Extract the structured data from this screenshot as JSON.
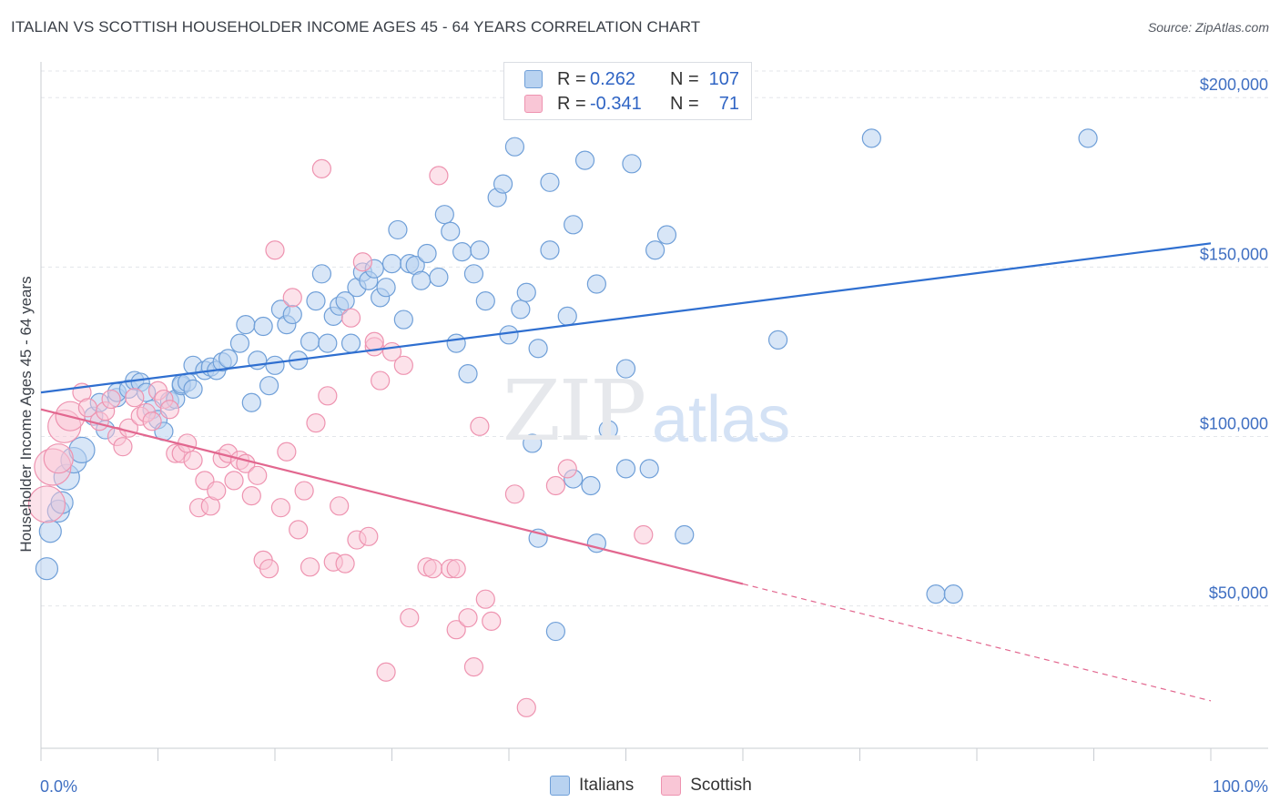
{
  "title": "ITALIAN VS SCOTTISH HOUSEHOLDER INCOME AGES 45 - 64 YEARS CORRELATION CHART",
  "source": "Source: ZipAtlas.com",
  "watermark": {
    "zip": "ZIP",
    "atlas": "atlas"
  },
  "legend": {
    "rows": [
      {
        "r_label": "R =",
        "r_value": "0.262",
        "n_label": "N =",
        "n_value": "107"
      },
      {
        "r_label": "R =",
        "r_value": "-0.341",
        "n_label": "N =",
        "n_value": "71"
      }
    ]
  },
  "bottom_legend": {
    "italians": "Italians",
    "scottish": "Scottish"
  },
  "colors": {
    "italians_fill": "#b8d2f0",
    "italians_stroke": "#6f9fd8",
    "italians_line": "#2f6fd0",
    "scottish_fill": "#f9c6d6",
    "scottish_stroke": "#ee93b0",
    "scottish_line": "#e2678f",
    "grid": "#e3e6ea",
    "axis_label": "#3f6fc2"
  },
  "chart_data": {
    "type": "scatter",
    "xlabel": "",
    "ylabel": "Householder Income Ages 45 - 64 years",
    "x_ticks": [
      "0.0%",
      "100.0%"
    ],
    "y_ticks": [
      "$200,000",
      "$150,000",
      "$100,000",
      "$50,000"
    ],
    "y_tick_values": [
      200000,
      150000,
      100000,
      50000
    ],
    "xlim": [
      0,
      100
    ],
    "ylim": [
      8000,
      210000
    ],
    "grid": "dashed horizontal",
    "series": [
      {
        "name": "Italians",
        "R": 0.262,
        "N": 107,
        "trend": {
          "x": [
            0,
            100
          ],
          "y": [
            113000,
            157000
          ]
        },
        "points": [
          [
            0.5,
            61000,
            12
          ],
          [
            0.8,
            72000,
            12
          ],
          [
            1.5,
            78000,
            12
          ],
          [
            1.8,
            80500,
            12
          ],
          [
            2.2,
            88000,
            14
          ],
          [
            2.8,
            93000,
            14
          ],
          [
            3.5,
            96000,
            14
          ],
          [
            4.5,
            106000,
            10
          ],
          [
            5,
            110000,
            10
          ],
          [
            5.5,
            102000,
            10
          ],
          [
            6.5,
            111500,
            10
          ],
          [
            6.5,
            113000,
            10
          ],
          [
            7.5,
            114000,
            10
          ],
          [
            8,
            116500,
            10
          ],
          [
            8.5,
            116000,
            10
          ],
          [
            9,
            113000,
            10
          ],
          [
            9.5,
            108000,
            10
          ],
          [
            10,
            105000,
            10
          ],
          [
            10.5,
            101500,
            10
          ],
          [
            11,
            110500,
            10
          ],
          [
            11.5,
            111000,
            10
          ],
          [
            12,
            115000,
            10
          ],
          [
            12,
            115500,
            10
          ],
          [
            12.5,
            116000,
            10
          ],
          [
            13,
            121000,
            10
          ],
          [
            13,
            114000,
            10
          ],
          [
            14,
            119500,
            10
          ],
          [
            14.5,
            120500,
            10
          ],
          [
            15,
            119500,
            10
          ],
          [
            15.5,
            122000,
            10
          ],
          [
            16,
            123000,
            10
          ],
          [
            17,
            127500,
            10
          ],
          [
            17.5,
            133000,
            10
          ],
          [
            18,
            110000,
            10
          ],
          [
            18.5,
            122500,
            10
          ],
          [
            19,
            132500,
            10
          ],
          [
            19.5,
            115000,
            10
          ],
          [
            20,
            121000,
            10
          ],
          [
            20.5,
            137500,
            10
          ],
          [
            21,
            133000,
            10
          ],
          [
            21.5,
            136000,
            10
          ],
          [
            22,
            122500,
            10
          ],
          [
            23,
            128000,
            10
          ],
          [
            23.5,
            140000,
            10
          ],
          [
            24,
            148000,
            10
          ],
          [
            24.5,
            127500,
            10
          ],
          [
            25,
            135500,
            10
          ],
          [
            25.5,
            138500,
            10
          ],
          [
            26,
            140000,
            10
          ],
          [
            26.5,
            127500,
            10
          ],
          [
            27,
            144000,
            10
          ],
          [
            27.5,
            148500,
            10
          ],
          [
            28,
            146000,
            10
          ],
          [
            28.5,
            149500,
            10
          ],
          [
            29,
            141000,
            10
          ],
          [
            29.5,
            144000,
            10
          ],
          [
            30,
            151000,
            10
          ],
          [
            30.5,
            161000,
            10
          ],
          [
            31,
            134500,
            10
          ],
          [
            31.5,
            151000,
            10
          ],
          [
            32,
            150500,
            10
          ],
          [
            32.5,
            146000,
            10
          ],
          [
            33,
            154000,
            10
          ],
          [
            34,
            147000,
            10
          ],
          [
            34.5,
            165500,
            10
          ],
          [
            35,
            160500,
            10
          ],
          [
            35.5,
            127500,
            10
          ],
          [
            36,
            154500,
            10
          ],
          [
            36.5,
            118500,
            10
          ],
          [
            37,
            148000,
            10
          ],
          [
            37.5,
            155000,
            10
          ],
          [
            38,
            140000,
            10
          ],
          [
            39,
            170500,
            10
          ],
          [
            39.5,
            174500,
            10
          ],
          [
            40,
            130000,
            10
          ],
          [
            40.5,
            185500,
            10
          ],
          [
            41,
            137500,
            10
          ],
          [
            41.5,
            142500,
            10
          ],
          [
            42,
            98000,
            10
          ],
          [
            42.5,
            126000,
            10
          ],
          [
            42.5,
            70000,
            10
          ],
          [
            43.5,
            155000,
            10
          ],
          [
            44,
            42500,
            10
          ],
          [
            43.5,
            175000,
            10
          ],
          [
            45,
            135500,
            10
          ],
          [
            45.5,
            162500,
            10
          ],
          [
            45.5,
            87500,
            10
          ],
          [
            46.5,
            181500,
            10
          ],
          [
            47,
            85500,
            10
          ],
          [
            47.5,
            145000,
            10
          ],
          [
            47.5,
            68500,
            10
          ],
          [
            48.5,
            102000,
            10
          ],
          [
            50,
            90500,
            10
          ],
          [
            50,
            120000,
            10
          ],
          [
            50.5,
            180500,
            10
          ],
          [
            52,
            90500,
            10
          ],
          [
            52.5,
            155000,
            10
          ],
          [
            53.5,
            159500,
            10
          ],
          [
            55,
            71000,
            10
          ],
          [
            63,
            128500,
            10
          ],
          [
            71,
            188000,
            10
          ],
          [
            76.5,
            53500,
            10
          ],
          [
            78,
            53500,
            10
          ],
          [
            89.5,
            188000,
            10
          ]
        ]
      },
      {
        "name": "Scottish",
        "R": -0.341,
        "N": 71,
        "trend": {
          "x": [
            0,
            60
          ],
          "y": [
            108000,
            56500
          ]
        },
        "trend_dashed": {
          "x": [
            60,
            100
          ],
          "y": [
            56500,
            22000
          ]
        },
        "points": [
          [
            0.5,
            80000,
            20
          ],
          [
            1,
            91000,
            20
          ],
          [
            1.5,
            93500,
            16
          ],
          [
            2,
            103000,
            18
          ],
          [
            2.5,
            106000,
            16
          ],
          [
            3.5,
            113000,
            10
          ],
          [
            4,
            108500,
            10
          ],
          [
            5,
            104500,
            10
          ],
          [
            5.5,
            107500,
            10
          ],
          [
            6,
            111000,
            10
          ],
          [
            6.5,
            100000,
            10
          ],
          [
            7,
            97000,
            10
          ],
          [
            7.5,
            102500,
            10
          ],
          [
            8,
            111500,
            10
          ],
          [
            8.5,
            106000,
            10
          ],
          [
            9,
            107000,
            10
          ],
          [
            9.5,
            104500,
            10
          ],
          [
            10,
            113500,
            10
          ],
          [
            10.5,
            111000,
            10
          ],
          [
            11,
            108000,
            10
          ],
          [
            11.5,
            95000,
            10
          ],
          [
            12,
            95000,
            10
          ],
          [
            12.5,
            98000,
            10
          ],
          [
            13,
            93000,
            10
          ],
          [
            13.5,
            79000,
            10
          ],
          [
            14,
            87000,
            10
          ],
          [
            14.5,
            79500,
            10
          ],
          [
            15,
            84000,
            10
          ],
          [
            15.5,
            93500,
            10
          ],
          [
            16,
            95000,
            10
          ],
          [
            16.5,
            87000,
            10
          ],
          [
            17,
            93000,
            10
          ],
          [
            17.5,
            92000,
            10
          ],
          [
            18,
            82500,
            10
          ],
          [
            18.5,
            88500,
            10
          ],
          [
            19,
            63500,
            10
          ],
          [
            19.5,
            61000,
            10
          ],
          [
            20,
            155000,
            10
          ],
          [
            20.5,
            79000,
            10
          ],
          [
            21,
            95500,
            10
          ],
          [
            21.5,
            141000,
            10
          ],
          [
            22,
            72500,
            10
          ],
          [
            22.5,
            84000,
            10
          ],
          [
            23,
            61500,
            10
          ],
          [
            23.5,
            104000,
            10
          ],
          [
            24,
            179000,
            10
          ],
          [
            24.5,
            112000,
            10
          ],
          [
            25,
            63000,
            10
          ],
          [
            25.5,
            79500,
            10
          ],
          [
            26,
            62500,
            10
          ],
          [
            26.5,
            135000,
            10
          ],
          [
            27,
            69500,
            10
          ],
          [
            27.5,
            151500,
            10
          ],
          [
            28,
            70500,
            10
          ],
          [
            28.5,
            126500,
            10
          ],
          [
            28.5,
            128000,
            10
          ],
          [
            29,
            116500,
            10
          ],
          [
            29.5,
            30500,
            10
          ],
          [
            30,
            125000,
            10
          ],
          [
            31,
            121000,
            10
          ],
          [
            31.5,
            46500,
            10
          ],
          [
            33,
            61500,
            10
          ],
          [
            33.5,
            61000,
            10
          ],
          [
            34,
            177000,
            10
          ],
          [
            35,
            61000,
            10
          ],
          [
            35.5,
            61000,
            10
          ],
          [
            35.5,
            43000,
            10
          ],
          [
            36.5,
            46500,
            10
          ],
          [
            37,
            32000,
            10
          ],
          [
            37.5,
            103000,
            10
          ],
          [
            38,
            52000,
            10
          ],
          [
            38.5,
            45500,
            10
          ],
          [
            40.5,
            83000,
            10
          ],
          [
            41.5,
            20000,
            10
          ],
          [
            44,
            85500,
            10
          ],
          [
            45,
            90500,
            10
          ],
          [
            51.5,
            71000,
            10
          ]
        ]
      }
    ]
  }
}
